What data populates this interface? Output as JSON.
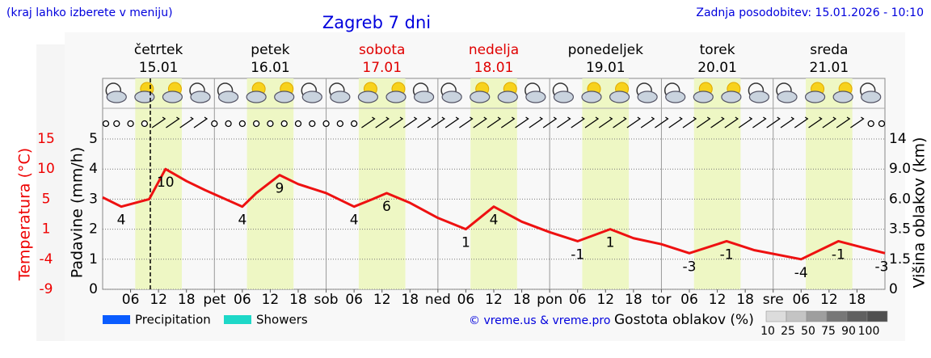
{
  "header": {
    "hint": "(kraj lahko izberete v meniju)",
    "updated": "Zadnja posodobitev: 15.01.2026 - 10:10"
  },
  "chart_data": {
    "type": "line",
    "title": "Zagreb 7 dni",
    "days": [
      {
        "name": "četrtek",
        "date": "15.01",
        "color": "#000000"
      },
      {
        "name": "petek",
        "date": "16.01",
        "color": "#000000"
      },
      {
        "name": "sobota",
        "date": "17.01",
        "color": "#e00000"
      },
      {
        "name": "nedelja",
        "date": "18.01",
        "color": "#e00000"
      },
      {
        "name": "ponedeljek",
        "date": "19.01",
        "color": "#000000"
      },
      {
        "name": "torek",
        "date": "20.01",
        "color": "#000000"
      },
      {
        "name": "sreda",
        "date": "21.01",
        "color": "#000000"
      }
    ],
    "xlim": [
      0,
      168
    ],
    "xticks": [
      {
        "value": 6,
        "label": "06"
      },
      {
        "value": 12,
        "label": "12"
      },
      {
        "value": 18,
        "label": "18"
      },
      {
        "value": 24,
        "label": "pet"
      },
      {
        "value": 30,
        "label": "06"
      },
      {
        "value": 36,
        "label": "12"
      },
      {
        "value": 42,
        "label": "18"
      },
      {
        "value": 48,
        "label": "sob"
      },
      {
        "value": 54,
        "label": "06"
      },
      {
        "value": 60,
        "label": "12"
      },
      {
        "value": 66,
        "label": "18"
      },
      {
        "value": 72,
        "label": "ned"
      },
      {
        "value": 78,
        "label": "06"
      },
      {
        "value": 84,
        "label": "12"
      },
      {
        "value": 90,
        "label": "18"
      },
      {
        "value": 96,
        "label": "pon"
      },
      {
        "value": 102,
        "label": "06"
      },
      {
        "value": 108,
        "label": "12"
      },
      {
        "value": 114,
        "label": "18"
      },
      {
        "value": 120,
        "label": "tor"
      },
      {
        "value": 126,
        "label": "06"
      },
      {
        "value": 132,
        "label": "12"
      },
      {
        "value": 138,
        "label": "18"
      },
      {
        "value": 144,
        "label": "sre"
      },
      {
        "value": 150,
        "label": "06"
      },
      {
        "value": 156,
        "label": "12"
      },
      {
        "value": 162,
        "label": "18"
      }
    ],
    "ylabel": "Padavine (mm/h)",
    "ylim": [
      0,
      5
    ],
    "yticks": [
      0,
      1,
      2,
      3,
      4,
      5
    ],
    "temp_label": "Temperatura (°C)",
    "temp_ticks": [
      -9,
      -4,
      1,
      5,
      10,
      15
    ],
    "temp_color": "#ee0000",
    "y2label": "Višina oblakov (km)",
    "y2ticks": [
      0,
      1.5,
      3.5,
      {
        "value": 6,
        "label": "6.0"
      },
      {
        "value": 9,
        "label": "9.0"
      },
      14
    ],
    "grid": true,
    "series": [
      {
        "name": "Temperatura",
        "color": "#ee1111",
        "x": [
          0,
          4,
          10,
          13.5,
          18,
          22,
          30,
          33,
          38,
          42,
          48,
          54,
          58,
          61,
          66,
          72,
          78,
          84,
          90,
          96,
          102,
          109,
          114,
          120,
          126,
          134,
          140,
          150,
          158,
          163,
          168
        ],
        "values": [
          5.3,
          4,
          5,
          10,
          8,
          6.5,
          4,
          6,
          9,
          7.5,
          6,
          4,
          5,
          6,
          4.5,
          2.5,
          1,
          4,
          2,
          0.5,
          -1,
          1,
          -0.5,
          -1.5,
          -3,
          -1,
          -2.5,
          -4,
          -1,
          -2,
          -3
        ]
      }
    ],
    "legend": [
      {
        "name": "Precipitation",
        "color": "#0a5cff"
      },
      {
        "name": "Showers",
        "color": "#1ed8c8"
      }
    ],
    "credit": "© vreme.us & vreme.pro",
    "cloud_legend": {
      "title": "Gostota oblakov (%)",
      "values": [
        10,
        25,
        50,
        75,
        90,
        100
      ]
    }
  }
}
